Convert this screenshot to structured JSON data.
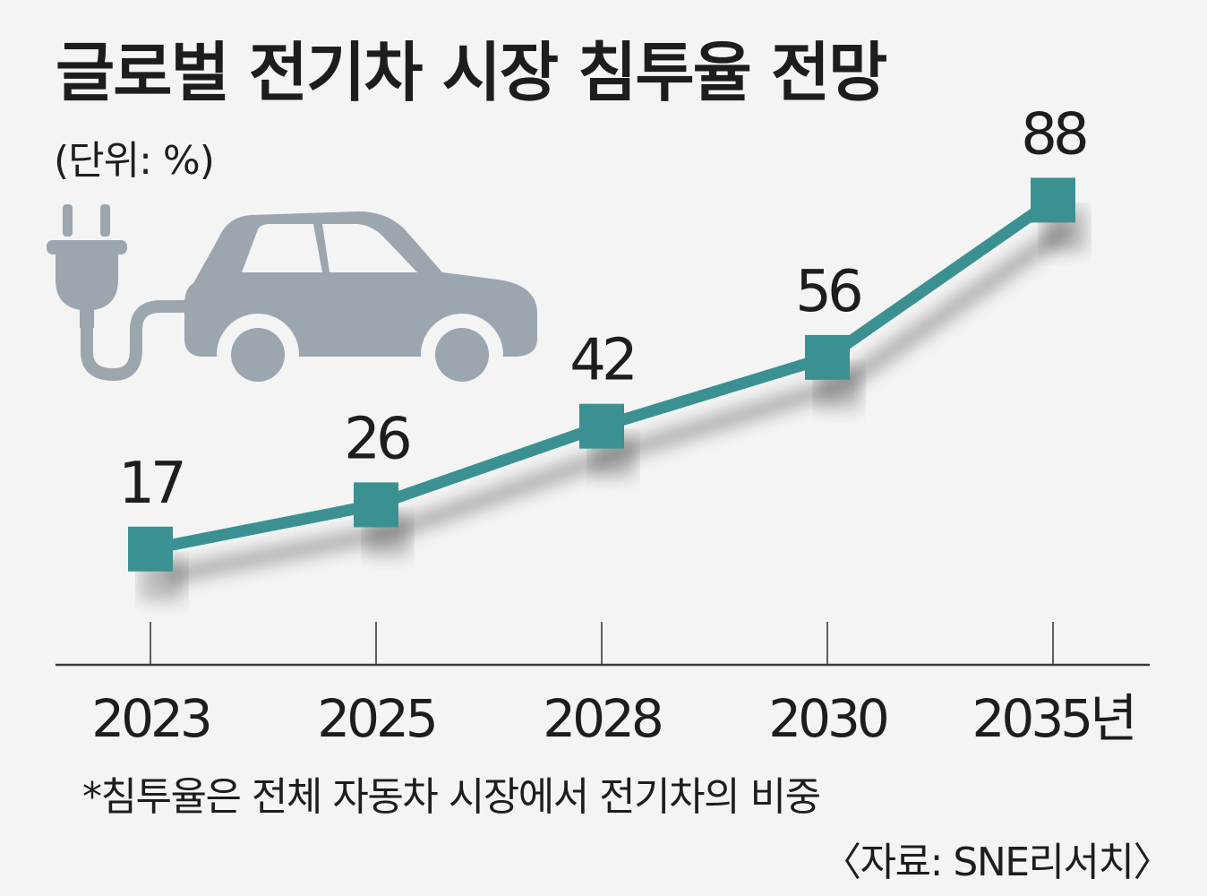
{
  "title": "글로벌 전기차 시장 침투율 전망",
  "unit_label": "(단위: %)",
  "footnote": "*침투율은 전체 자동차 시장에서 전기차의 비중",
  "source": "〈자료: SNE리서치〉",
  "colors": {
    "line": "#3b9191",
    "marker": "#3b9191",
    "axis": "#3a3a3a",
    "icon": "#9ba6ae",
    "background": "#f4f4f4"
  },
  "icons": [
    "plug-icon",
    "car-icon"
  ],
  "chart_data": {
    "type": "line",
    "title": "글로벌 전기차 시장 침투율 전망",
    "categories": [
      "2023",
      "2025",
      "2028",
      "2030",
      "2035년"
    ],
    "series": [
      {
        "values": [
          17,
          26,
          42,
          56,
          88
        ]
      }
    ],
    "data_labels": [
      "17",
      "26",
      "42",
      "56",
      "88"
    ],
    "ylabel": "(단위: %)",
    "ylim": [
      0,
      100
    ],
    "grid": false,
    "legend": "none"
  }
}
